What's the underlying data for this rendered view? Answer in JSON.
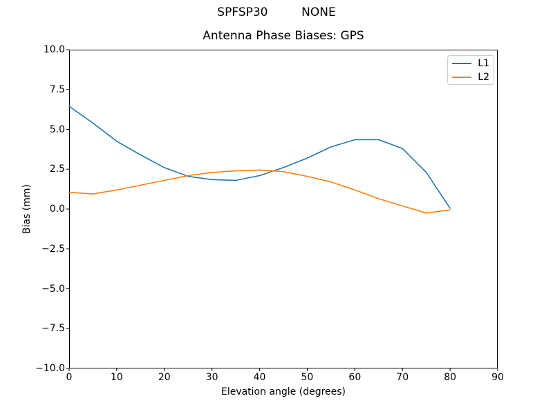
{
  "figure": {
    "suptitle": "SPFSP30         NONE",
    "background": "#ffffff"
  },
  "chart_data": {
    "type": "line",
    "title": "Antenna Phase Biases: GPS",
    "suptitle": "SPFSP30         NONE",
    "xlabel": "Elevation angle (degrees)",
    "ylabel": "Bias (mm)",
    "xlim": [
      0,
      90
    ],
    "ylim": [
      -10,
      10
    ],
    "grid": false,
    "frame_color": "#000000",
    "legend_position": "upper right",
    "xticks": [
      0,
      10,
      20,
      30,
      40,
      50,
      60,
      70,
      80,
      90
    ],
    "xtick_labels": [
      "0",
      "10",
      "20",
      "30",
      "40",
      "50",
      "60",
      "70",
      "80",
      "90"
    ],
    "yticks": [
      10,
      7.5,
      5,
      2.5,
      0,
      -2.5,
      -5,
      -7.5,
      -10
    ],
    "ytick_labels": [
      "10.0",
      "7.5",
      "5.0",
      "2.5",
      "0.0",
      "−2.5",
      "−5.0",
      "−7.5",
      "−10.0"
    ],
    "x": [
      0,
      5,
      10,
      15,
      20,
      25,
      30,
      35,
      40,
      45,
      50,
      55,
      60,
      65,
      70,
      75,
      80
    ],
    "series": [
      {
        "name": "L1",
        "color": "#1f77b4",
        "values": [
          6.45,
          5.4,
          4.25,
          3.4,
          2.6,
          2.05,
          1.85,
          1.8,
          2.1,
          2.6,
          3.2,
          3.9,
          4.35,
          4.35,
          3.8,
          2.3,
          0.05
        ]
      },
      {
        "name": "L2",
        "color": "#ff7f0e",
        "values": [
          1.05,
          0.95,
          1.2,
          1.5,
          1.8,
          2.1,
          2.3,
          2.4,
          2.45,
          2.35,
          2.05,
          1.7,
          1.2,
          0.65,
          0.2,
          -0.25,
          -0.05
        ]
      }
    ]
  }
}
